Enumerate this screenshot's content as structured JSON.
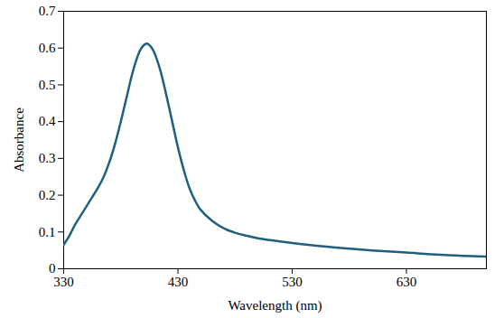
{
  "chart_data": {
    "type": "line",
    "x_label": "Wavelength (nm)",
    "y_label": "Absorbance",
    "x": [
      330,
      335,
      340,
      345,
      350,
      355,
      360,
      365,
      370,
      375,
      380,
      385,
      390,
      395,
      398,
      401,
      403,
      406,
      409,
      412,
      415,
      420,
      425,
      430,
      435,
      440,
      445,
      450,
      460,
      470,
      480,
      490,
      500,
      515,
      530,
      560,
      600,
      630,
      660,
      700
    ],
    "series": [
      {
        "name": "Absorbance",
        "color": "#1f5f80",
        "values": [
          0.065,
          0.09,
          0.12,
          0.145,
          0.17,
          0.195,
          0.22,
          0.25,
          0.29,
          0.34,
          0.4,
          0.465,
          0.53,
          0.58,
          0.6,
          0.61,
          0.612,
          0.605,
          0.59,
          0.565,
          0.535,
          0.47,
          0.4,
          0.33,
          0.27,
          0.22,
          0.185,
          0.16,
          0.13,
          0.11,
          0.098,
          0.09,
          0.083,
          0.076,
          0.07,
          0.06,
          0.05,
          0.044,
          0.038,
          0.033
        ]
      }
    ],
    "xlim": [
      330,
      700
    ],
    "xticks": [
      330,
      430,
      530,
      630
    ],
    "ylim": [
      0,
      0.7
    ],
    "yticks": [
      0,
      0.1,
      0.2,
      0.3,
      0.4,
      0.5,
      0.6,
      0.7
    ],
    "grid": false
  }
}
